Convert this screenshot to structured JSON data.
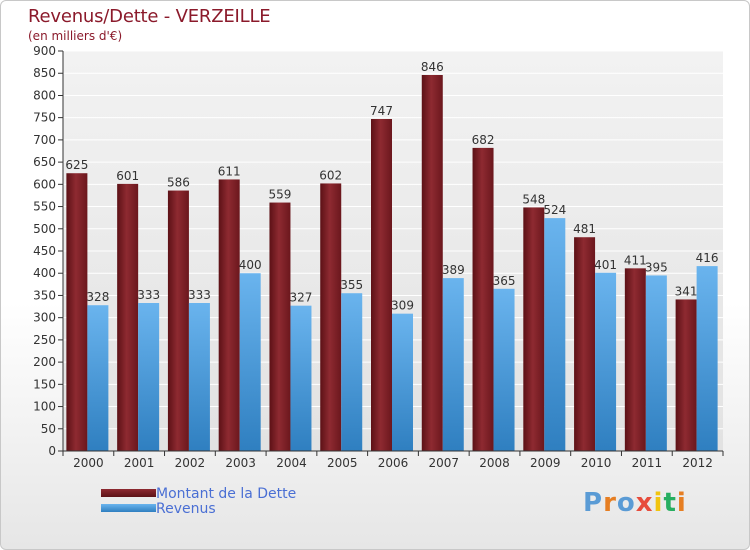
{
  "title": "Revenus/Dette - VERZEILLE",
  "subtitle": "(en milliers d'€)",
  "logo": {
    "letters": [
      "P",
      "r",
      "o",
      "x",
      "i",
      "t",
      "i"
    ],
    "colors": [
      "#5a9bd5",
      "#e67e22",
      "#5a9bd5",
      "#e74c3c",
      "#f1c40f",
      "#27ae60",
      "#e67e22"
    ]
  },
  "colors": {
    "debt": "#7a1f24",
    "debt_light": "#a0323a",
    "revenue": "#4a9fe0",
    "revenue_light": "#73b6ea",
    "title": "#8b1a2b",
    "legend_text": "#4a6fd4"
  },
  "chart_data": {
    "type": "bar",
    "title": "Revenus/Dette - VERZEILLE",
    "subtitle": "(en milliers d'€)",
    "categories": [
      "2000",
      "2001",
      "2002",
      "2003",
      "2004",
      "2005",
      "2006",
      "2007",
      "2008",
      "2009",
      "2010",
      "2011",
      "2012"
    ],
    "series": [
      {
        "name": "Montant de la Dette",
        "values": [
          625,
          601,
          586,
          611,
          559,
          602,
          747,
          846,
          682,
          548,
          481,
          411,
          341
        ]
      },
      {
        "name": "Revenus",
        "values": [
          328,
          333,
          333,
          400,
          327,
          355,
          309,
          389,
          365,
          524,
          401,
          395,
          416
        ]
      }
    ],
    "ylim": [
      0,
      900
    ],
    "yticks": [
      0,
      50,
      100,
      150,
      200,
      250,
      300,
      350,
      400,
      450,
      500,
      550,
      600,
      650,
      700,
      750,
      800,
      850,
      900
    ],
    "grid": true,
    "legend": "bottom-left"
  }
}
